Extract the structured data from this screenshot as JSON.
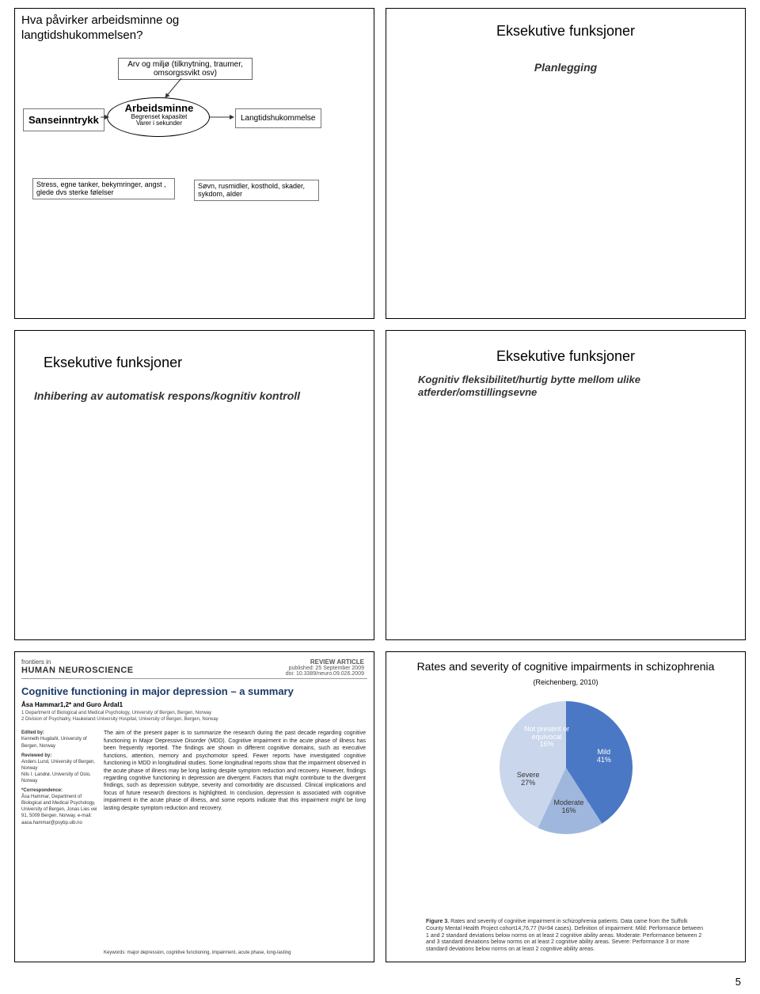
{
  "page_number": "5",
  "panel1": {
    "title": "Hva påvirker arbeidsminne og langtidshukommelsen?",
    "context_box": "Arv og miljø (tilknytning, traumer, omsorgssvikt osv)",
    "sense": "Sanseinntrykk",
    "arbeidsminne": "Arbeidsminne",
    "arbeid_sub1": "Begrenset kapasitet",
    "arbeid_sub2": "Varer i sekunder",
    "langtid": "Langtidshukommelse",
    "stress": "Stress, egne tanker, bekymringer, angst , glede dvs sterke følelser",
    "sovn": "Søvn, rusmidler, kosthold, skader, sykdom, alder"
  },
  "panel2": {
    "title": "Eksekutive funksjoner",
    "sub": "Planlegging"
  },
  "panel3": {
    "title": "Eksekutive funksjoner",
    "sub": "Inhibering av automatisk respons/kognitiv kontroll"
  },
  "panel4": {
    "title": "Eksekutive funksjoner",
    "sub": "Kognitiv fleksibilitet/hurtig bytte mellom ulike atferder/omstillingsevne"
  },
  "panel5": {
    "logo_small": "frontiers in",
    "logo_big": "HUMAN NEUROSCIENCE",
    "review": "REVIEW ARTICLE",
    "pub": "published: 25 September 2009",
    "doi": "doi: 10.3389/neuro.09.026.2009",
    "title": "Cognitive functioning in major depression – a summary",
    "authors": "Åsa Hammar1,2* and Guro Årdal1",
    "affil1": "1 Department of Biological and Medical Psychology, University of Bergen, Bergen, Norway",
    "affil2": "2 Division of Psychiatry, Haukeland University Hospital, University of Bergen, Bergen, Norway",
    "edited_label": "Edited by:",
    "edited": "Kenneth Hugdahl, University of Bergen, Norway",
    "rev_label": "Reviewed by:",
    "rev1": "Anders Lund, University of Bergen, Norway",
    "rev2": "Nils I. Landrø, University of Oslo, Norway",
    "corr_label": "*Correspondence:",
    "corr": "Åsa Hammar, Department of Biological and Medical Psychology, University of Bergen, Jonas Lies vei 91, 5009 Bergen, Norway. e-mail: aasa.hammar@psybp.uib.no",
    "abstract": "The aim of the present paper is to summarize the research during the past decade regarding cognitive functioning in Major Depressive Disorder (MDD). Cognitive impairment in the acute phase of illness has been frequently reported. The findings are shown in different cognitive domains, such as executive functions, attention, memory and psychomotor speed. Fewer reports have investigated cognitive functioning in MDD in longitudinal studies. Some longitudinal reports show that the impairment observed in the acute phase of illness may be long lasting despite symptom reduction and recovery. However, findings regarding cognitive functioning in depression are divergent. Factors that might contribute to the divergent findings, such as depression subtype, severity and comorbidity are discussed. Clinical implications and focus of future research directions is highlighted. In conclusion, depression is associated with cognitive impairment in the acute phase of illness, and some reports indicate that this impairment might be long lasting despite symptom reduction and recovery.",
    "keywords": "Keywords: major depression, cognitive functioning, impairment, acute phase, long-lasting"
  },
  "panel6": {
    "title_main": "Rates and severity of cognitive impairments in schizophrenia",
    "title_ref": "(Reichenberg, 2010)",
    "pie": {
      "type": "pie",
      "slices": [
        {
          "label": "Not present or equivocal",
          "value": 16,
          "color": "#2b4d8c",
          "lbl_color": "#ffffff"
        },
        {
          "label": "Mild",
          "value": 41,
          "color": "#4a78c4",
          "lbl_color": "#ffffff"
        },
        {
          "label": "Moderate",
          "value": 16,
          "color": "#9fb7dd",
          "lbl_color": "#333333"
        },
        {
          "label": "Severe",
          "value": 27,
          "color": "#c9d6ec",
          "lbl_color": "#333333"
        }
      ],
      "background": "#ffffff",
      "font_size": 9
    },
    "caption_lead": "Figure 3.",
    "caption": " Rates and severity of cognitive impairment in schizophrenia patients. Data came from the Suffolk County Mental Health Project cohort14,76,77 (N=94 cases). Definition of impairment: Mild: Performance between 1 and 2 standard deviations below norms on at least 2 cognitive ability areas. Moderate: Performance between 2 and 3 standard deviations below norms on at least 2 cognitive ability areas. Severe: Performance 3 or more standard deviations below norms on at least 2 cognitive ability areas."
  }
}
